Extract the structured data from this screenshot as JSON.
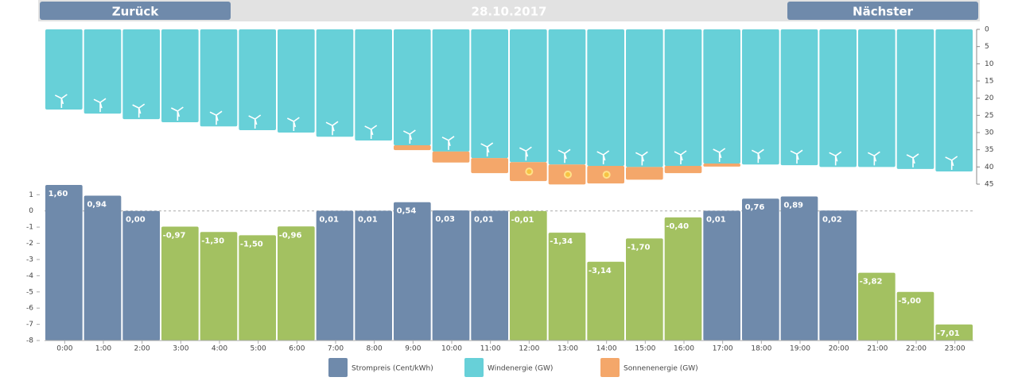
{
  "nav": {
    "back": "Zurück",
    "date": "28.10.2017",
    "next": "Nächster"
  },
  "chart_data": [
    {
      "type": "stacked_bar",
      "y_inverted": true,
      "ylim": [
        0,
        45
      ],
      "yticks": [
        0,
        5,
        10,
        15,
        20,
        25,
        30,
        35,
        40,
        45
      ],
      "series": [
        {
          "name": "Windenergie (GW)",
          "color": "#67d0d8",
          "values": [
            23.3,
            24.5,
            26.1,
            27,
            28.2,
            29.3,
            30,
            31.2,
            32.3,
            33.7,
            35.5,
            37.4,
            38.6,
            39.3,
            39.7,
            40,
            39.7,
            39,
            39.3,
            39.5,
            40,
            40,
            40.6,
            41.3
          ]
        },
        {
          "name": "Sonnenenergie (GW)",
          "color": "#f4a76a",
          "values": [
            0,
            0,
            0,
            0,
            0,
            0,
            0,
            0,
            0,
            1.4,
            3.2,
            4.4,
            5.5,
            5.8,
            5.1,
            3.7,
            2.1,
            0.9,
            0,
            0,
            0,
            0,
            0,
            0
          ]
        }
      ]
    },
    {
      "type": "bar",
      "ylim": [
        -8,
        1.75
      ],
      "yticks": [
        1,
        0,
        -1,
        -2,
        -3,
        -4,
        -5,
        -6,
        -7,
        -8
      ],
      "categories": [
        "0:00",
        "1:00",
        "2:00",
        "3:00",
        "4:00",
        "5:00",
        "6:00",
        "7:00",
        "8:00",
        "9:00",
        "10:00",
        "11:00",
        "12:00",
        "13:00",
        "14:00",
        "15:00",
        "16:00",
        "17:00",
        "18:00",
        "19:00",
        "20:00",
        "21:00",
        "22:00",
        "23:00"
      ],
      "series": [
        {
          "name": "Strompreis (Cent/kWh)",
          "color": "#6f8aab",
          "negative_color": "#a3c161",
          "values": [
            1.6,
            0.94,
            0.0,
            -0.97,
            -1.3,
            -1.5,
            -0.96,
            0.01,
            0.01,
            0.54,
            0.03,
            0.01,
            -0.01,
            -1.34,
            -3.14,
            -1.7,
            -0.4,
            0.01,
            0.76,
            0.89,
            0.02,
            -3.82,
            -5.0,
            -7.01
          ],
          "value_labels": [
            "1,60",
            "0,94",
            "0,00",
            "-0,97",
            "-1,30",
            "-1,50",
            "-0,96",
            "0,01",
            "0,01",
            "0,54",
            "0,03",
            "0,01",
            "-0,01",
            "-1,34",
            "-3,14",
            "-1,70",
            "-0,40",
            "0,01",
            "0,76",
            "0,89",
            "0,02",
            "-3,82",
            "-5,00",
            "-7,01"
          ]
        }
      ]
    }
  ]
}
